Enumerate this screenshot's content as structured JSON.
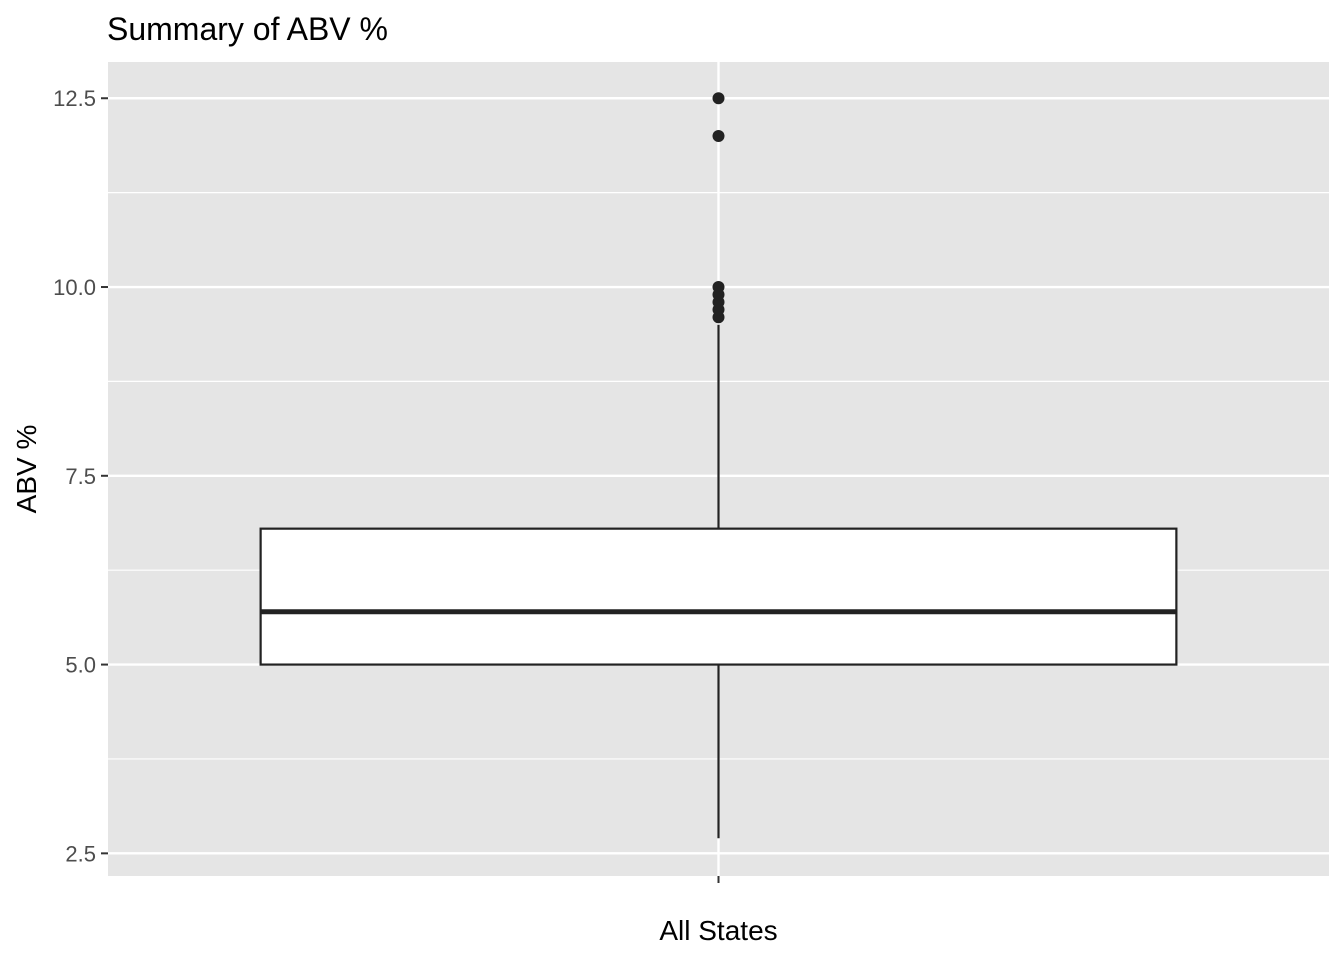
{
  "chart_data": {
    "type": "boxplot",
    "title": "Summary of ABV %",
    "xlabel": "",
    "ylabel": "ABV %",
    "categories": [
      "All States"
    ],
    "ylim": [
      2.2,
      12.98
    ],
    "y_ticks": [
      2.5,
      5.0,
      7.5,
      10.0,
      12.5
    ],
    "y_tick_labels": [
      "2.5",
      "5.0",
      "7.5",
      "10.0",
      "12.5"
    ],
    "boxes": [
      {
        "category": "All States",
        "whisker_low": 2.7,
        "q1": 5.0,
        "median": 5.7,
        "q3": 6.8,
        "whisker_high": 9.5,
        "outliers": [
          9.6,
          9.7,
          9.8,
          9.9,
          10.0,
          12.0,
          12.5
        ]
      }
    ],
    "grid": true,
    "legend": "none",
    "colors": {
      "panel": "#e5e5e5",
      "grid": "#ffffff",
      "box_fill": "#ffffff",
      "box_line": "#222222",
      "tick_text": "#4d4d4d"
    }
  }
}
